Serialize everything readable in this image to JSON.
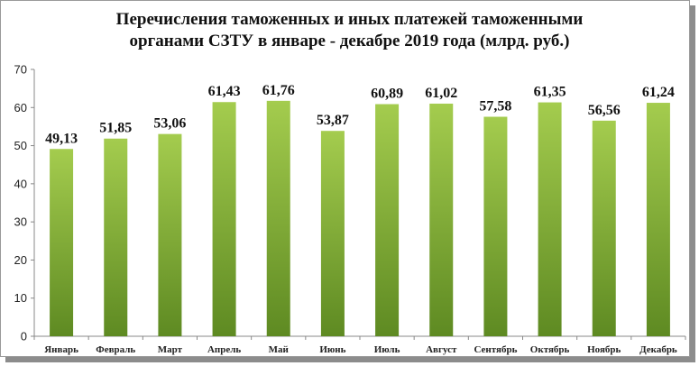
{
  "chart_data": {
    "type": "bar",
    "title": "Перечисления таможенных и иных платежей таможенными органами СЗТУ в январе - декабре 2019 года (млрд. руб.)",
    "title_lines": [
      "Перечисления таможенных и иных платежей таможенными",
      "органами СЗТУ  в январе - декабре 2019 года (млрд. руб.)"
    ],
    "categories": [
      "Январь",
      "Февраль",
      "Март",
      "Апрель",
      "Май",
      "Июнь",
      "Июль",
      "Август",
      "Сентябрь",
      "Октябрь",
      "Ноябрь",
      "Декабрь"
    ],
    "values": [
      49.13,
      51.85,
      53.06,
      61.43,
      61.76,
      53.87,
      60.89,
      61.02,
      57.58,
      61.35,
      56.56,
      61.24
    ],
    "data_labels": [
      "49,13",
      "51,85",
      "53,06",
      "61,43",
      "61,76",
      "53,87",
      "60,89",
      "61,02",
      "57,58",
      "61,35",
      "56,56",
      "61,24"
    ],
    "y_ticks": [
      "0",
      "10",
      "20",
      "30",
      "40",
      "50",
      "60",
      "70"
    ],
    "ylim": [
      0,
      70
    ],
    "grid": false,
    "legend": "none",
    "bar_color_top": "#a4cc4e",
    "bar_color_bottom": "#5e8a22"
  }
}
